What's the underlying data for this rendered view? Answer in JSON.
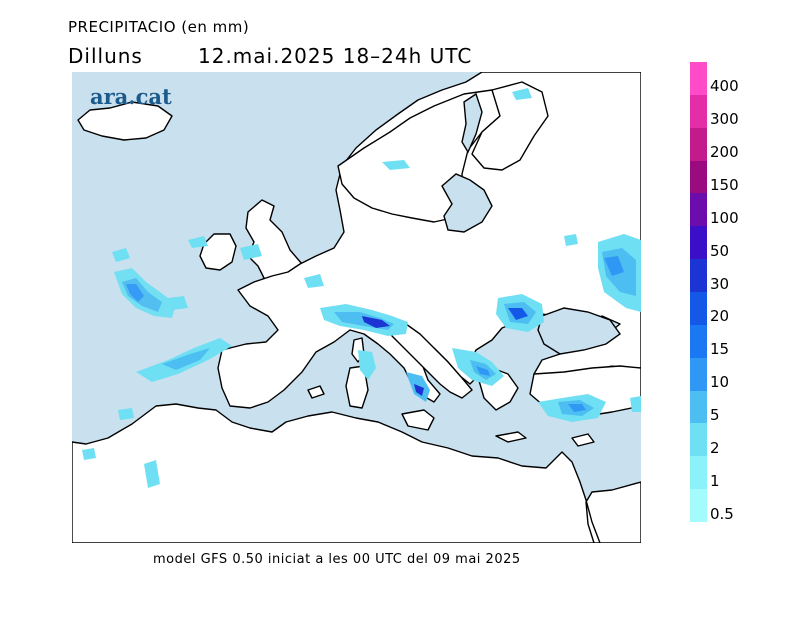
{
  "header": {
    "title": "PRECIPITACIO (en mm)",
    "day": "Dilluns",
    "datetime": "12.mai.2025  18–24h  UTC"
  },
  "logo": {
    "text": "ara.cat"
  },
  "footer": {
    "text": "model GFS 0.50 iniciat a les 00 UTC del 09 mai 2025"
  },
  "colors": {
    "sea": "#c9e0ee",
    "land": "#ffffff",
    "coast": "#000000"
  },
  "legend": {
    "labels": [
      "400",
      "300",
      "200",
      "150",
      "100",
      "50",
      "30",
      "20",
      "15",
      "10",
      "5",
      "2",
      "1",
      "0.5"
    ],
    "colors": [
      "#ff4bc8",
      "#e32ea7",
      "#c31a8c",
      "#9a0b80",
      "#6d0cad",
      "#3b0fc7",
      "#1d34d4",
      "#1358e6",
      "#1978f2",
      "#2f98f5",
      "#4dbef2",
      "#6fdff3",
      "#8af2f8",
      "#a3fbfc"
    ]
  }
}
